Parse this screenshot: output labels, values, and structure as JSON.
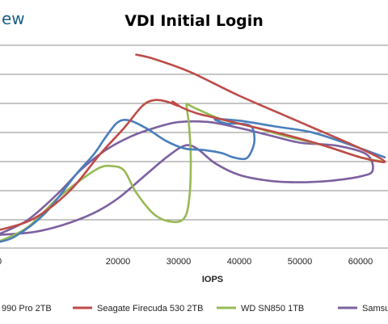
{
  "logo_text": "ew",
  "chart_data": {
    "type": "scatter",
    "title": "VDI Initial Login",
    "xlabel": "IOPS",
    "ylabel": "",
    "xlim": [
      0,
      64000
    ],
    "x_ticks": [
      "20000",
      "30000",
      "40000",
      "50000",
      "60000"
    ],
    "x_tick_values": [
      20000,
      30000,
      40000,
      50000,
      60000
    ],
    "grid": "horizontal",
    "legend_position": "bottom",
    "series": [
      {
        "name": "990 Pro 2TB",
        "color": "#4a7ebb",
        "x": [
          0,
          3000,
          8000,
          13000,
          16000,
          18000,
          20000,
          22000,
          25000,
          28000,
          31000,
          34000,
          37000,
          39000,
          41000,
          42000,
          42500,
          42000,
          40000,
          38000,
          36000,
          40000,
          46000,
          52000,
          58000,
          64000
        ],
        "y": [
          0.0,
          0.04,
          0.2,
          0.46,
          0.6,
          0.72,
          0.82,
          0.83,
          0.77,
          0.69,
          0.64,
          0.63,
          0.61,
          0.58,
          0.57,
          0.62,
          0.7,
          0.79,
          0.81,
          0.81,
          0.84,
          0.83,
          0.79,
          0.75,
          0.67,
          0.58
        ]
      },
      {
        "name": "Seagate Firecuda 530 2TB",
        "color": "#be4b48",
        "x": [
          0,
          6000,
          12000,
          17000,
          21000,
          24000,
          26000,
          28000,
          30000,
          29000,
          30500,
          33000,
          37000,
          42000,
          48000,
          54000,
          60000,
          64000,
          60000,
          50000,
          40000,
          32000,
          26000,
          23000
        ],
        "y": [
          0.08,
          0.16,
          0.35,
          0.6,
          0.78,
          0.93,
          0.97,
          0.96,
          0.93,
          0.96,
          0.92,
          0.88,
          0.84,
          0.79,
          0.73,
          0.66,
          0.58,
          0.55,
          0.64,
          0.82,
          1.0,
          1.16,
          1.25,
          1.28
        ]
      },
      {
        "name": "WD SN850 1TB",
        "color": "#98b954",
        "x": [
          0,
          5000,
          10000,
          14000,
          17000,
          19000,
          21000,
          23000,
          26000,
          29000,
          31000,
          31800,
          32000,
          31700,
          31300,
          31500,
          33000,
          37000,
          42000,
          48000,
          54000,
          60000,
          64000
        ],
        "y": [
          0.0,
          0.1,
          0.3,
          0.43,
          0.51,
          0.52,
          0.49,
          0.34,
          0.19,
          0.14,
          0.17,
          0.32,
          0.58,
          0.8,
          0.93,
          0.94,
          0.91,
          0.84,
          0.79,
          0.72,
          0.66,
          0.58,
          0.55
        ]
      },
      {
        "name": "Samsung",
        "color": "#7d60a0",
        "x": [
          0,
          6000,
          11000,
          16000,
          20000,
          24000,
          28000,
          31000,
          33000,
          36000,
          40000,
          45000,
          50000,
          55000,
          60000,
          62000,
          61000,
          56000,
          50000,
          45000,
          40000,
          35000,
          30000,
          26000,
          22000,
          18000,
          14000,
          10000,
          5000,
          0
        ],
        "y": [
          0.05,
          0.07,
          0.12,
          0.2,
          0.3,
          0.44,
          0.58,
          0.66,
          0.64,
          0.54,
          0.46,
          0.42,
          0.41,
          0.42,
          0.45,
          0.49,
          0.6,
          0.66,
          0.68,
          0.73,
          0.78,
          0.82,
          0.82,
          0.78,
          0.72,
          0.63,
          0.5,
          0.33,
          0.15,
          0.05
        ]
      }
    ]
  }
}
